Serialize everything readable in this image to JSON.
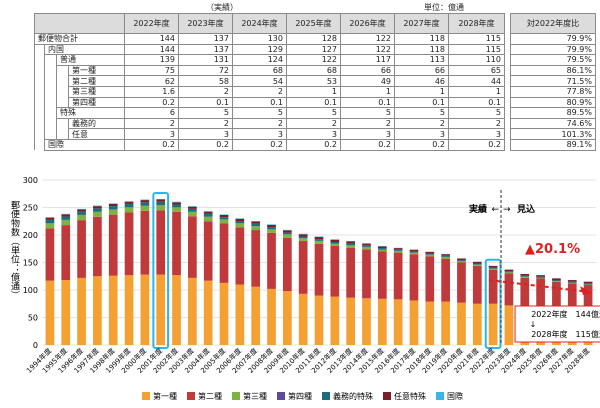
{
  "table": {
    "actual_label": "（実績）",
    "unit_label": "単位：億通",
    "headers": [
      "2022年度",
      "2023年度",
      "2024年度",
      "2025年度",
      "2026年度",
      "2027年度",
      "2028年度"
    ],
    "ratio_header": "対2022年度比",
    "rows": [
      {
        "l1": "郵便物合計",
        "l2": "",
        "l3": "",
        "vals": [
          "144",
          "137",
          "130",
          "128",
          "122",
          "118",
          "115"
        ],
        "ratio": "79.9%"
      },
      {
        "l1": "",
        "l2": "内国",
        "l3": "",
        "vals": [
          "144",
          "137",
          "129",
          "127",
          "122",
          "118",
          "115"
        ],
        "ratio": "79.9%"
      },
      {
        "l1": "",
        "l2": "",
        "l3": "普通",
        "l4": "",
        "vals": [
          "139",
          "131",
          "124",
          "122",
          "117",
          "113",
          "110"
        ],
        "ratio": "79.5%"
      },
      {
        "l1": "",
        "l2": "",
        "l3": "",
        "l4": "第一種",
        "vals": [
          "75",
          "72",
          "68",
          "68",
          "66",
          "66",
          "65"
        ],
        "ratio": "86.1%"
      },
      {
        "l1": "",
        "l2": "",
        "l3": "",
        "l4": "第二種",
        "vals": [
          "62",
          "58",
          "54",
          "53",
          "49",
          "46",
          "44"
        ],
        "ratio": "71.5%"
      },
      {
        "l1": "",
        "l2": "",
        "l3": "",
        "l4": "第三種",
        "vals": [
          "1.6",
          "2",
          "2",
          "1",
          "1",
          "1",
          "1"
        ],
        "ratio": "77.8%"
      },
      {
        "l1": "",
        "l2": "",
        "l3": "",
        "l4": "第四種",
        "vals": [
          "0.2",
          "0.1",
          "0.1",
          "0.1",
          "0.1",
          "0.1",
          "0.1"
        ],
        "ratio": "80.9%"
      },
      {
        "l1": "",
        "l2": "",
        "l3": "特殊",
        "l4": "",
        "vals": [
          "6",
          "5",
          "5",
          "5",
          "5",
          "5",
          "5"
        ],
        "ratio": "89.5%"
      },
      {
        "l1": "",
        "l2": "",
        "l3": "",
        "l4": "義務的",
        "vals": [
          "2",
          "2",
          "2",
          "2",
          "2",
          "2",
          "2"
        ],
        "ratio": "74.6%"
      },
      {
        "l1": "",
        "l2": "",
        "l3": "",
        "l4": "任意",
        "vals": [
          "3",
          "3",
          "3",
          "3",
          "3",
          "3",
          "3"
        ],
        "ratio": "101.3%"
      },
      {
        "l1": "",
        "l2": "国際",
        "l3": "",
        "l4": "",
        "vals": [
          "0.2",
          "0.2",
          "0.2",
          "0.2",
          "0.2",
          "0.2",
          "0.2"
        ],
        "ratio": "89.1%"
      }
    ]
  },
  "chart_data": {
    "type": "bar",
    "stacked": true,
    "ylabel": "郵便物数（単位：億通）",
    "ylim": [
      0,
      300
    ],
    "yticks": [
      0,
      50,
      100,
      150,
      200,
      250,
      300
    ],
    "categories": [
      "1994年度",
      "1995年度",
      "1996年度",
      "1997年度",
      "1998年度",
      "1999年度",
      "2000年度",
      "2001年度",
      "2002年度",
      "2003年度",
      "2004年度",
      "2005年度",
      "2006年度",
      "2007年度",
      "2008年度",
      "2009年度",
      "2010年度",
      "2011年度",
      "2012年度",
      "2013年度",
      "2014年度",
      "2015年度",
      "2016年度",
      "2017年度",
      "2018年度",
      "2019年度",
      "2020年度",
      "2021年度",
      "2022年度",
      "2023年度",
      "2024年度",
      "2025年度",
      "2026年度",
      "2027年度",
      "2028年度"
    ],
    "series": [
      {
        "name": "第一種",
        "color": "#f5a033",
        "values": [
          117,
          118,
          122,
          125,
          126,
          127,
          128,
          128,
          127,
          122,
          117,
          113,
          110,
          106,
          102,
          98,
          93,
          90,
          88,
          86,
          85,
          84,
          83,
          81,
          79,
          79,
          77,
          75,
          75,
          72,
          68,
          68,
          66,
          66,
          65
        ]
      },
      {
        "name": "第二種",
        "color": "#c0393b",
        "values": [
          95,
          100,
          105,
          108,
          111,
          114,
          116,
          117,
          115,
          112,
          108,
          108,
          104,
          103,
          102,
          97,
          96,
          94,
          92,
          91,
          89,
          86,
          85,
          84,
          82,
          78,
          73,
          69,
          62,
          58,
          54,
          53,
          49,
          46,
          44
        ]
      },
      {
        "name": "第三種",
        "color": "#7cb342",
        "values": [
          9,
          9,
          9,
          9,
          9,
          9,
          9,
          9,
          8,
          8,
          8,
          7,
          7,
          7,
          6,
          6,
          5,
          5,
          4,
          4,
          4,
          3,
          3,
          3,
          3,
          3,
          2,
          2,
          1.6,
          2,
          2,
          1,
          1,
          1,
          1
        ]
      },
      {
        "name": "第四種",
        "color": "#5b4b9a",
        "values": [
          0.5,
          0.5,
          0.5,
          0.5,
          0.5,
          0.5,
          0.5,
          0.5,
          0.5,
          0.5,
          0.4,
          0.4,
          0.4,
          0.4,
          0.4,
          0.3,
          0.3,
          0.3,
          0.3,
          0.3,
          0.3,
          0.2,
          0.2,
          0.2,
          0.2,
          0.2,
          0.2,
          0.2,
          0.2,
          0.1,
          0.1,
          0.1,
          0.1,
          0.1,
          0.1
        ]
      },
      {
        "name": "義務的特殊",
        "color": "#1f6d7a",
        "values": [
          6,
          6,
          6,
          6,
          6,
          6,
          6,
          6,
          5,
          5,
          5,
          4,
          4,
          4,
          4,
          3,
          3,
          3,
          3,
          3,
          3,
          3,
          2,
          2,
          2,
          2,
          2,
          2,
          2,
          2,
          2,
          2,
          2,
          2,
          2
        ]
      },
      {
        "name": "任意特殊",
        "color": "#7a1f2a",
        "values": [
          4,
          4,
          4,
          4,
          4,
          4,
          4,
          4,
          4,
          4,
          4,
          4,
          4,
          4,
          4,
          4,
          4,
          4,
          4,
          4,
          3,
          3,
          3,
          3,
          3,
          3,
          3,
          3,
          3,
          3,
          3,
          3,
          3,
          3,
          3
        ]
      },
      {
        "name": "国際",
        "color": "#3bb4e6",
        "values": [
          1,
          1,
          1,
          1,
          1,
          1,
          1,
          1,
          1,
          1,
          1,
          1,
          1,
          1,
          1,
          1,
          1,
          1,
          1,
          0.8,
          0.8,
          0.7,
          0.6,
          0.6,
          0.5,
          0.4,
          0.3,
          0.3,
          0.2,
          0.2,
          0.2,
          0.2,
          0.2,
          0.2,
          0.2
        ]
      }
    ],
    "highlighted_categories": [
      "2001年度",
      "2022年度"
    ],
    "split_label_actual": "実績",
    "split_label_forecast": "見込",
    "change_label": "▲20.1%",
    "note": {
      "line1": "2022年度　144億通",
      "arrow": "↓",
      "line2": "2028年度　115億通"
    }
  }
}
